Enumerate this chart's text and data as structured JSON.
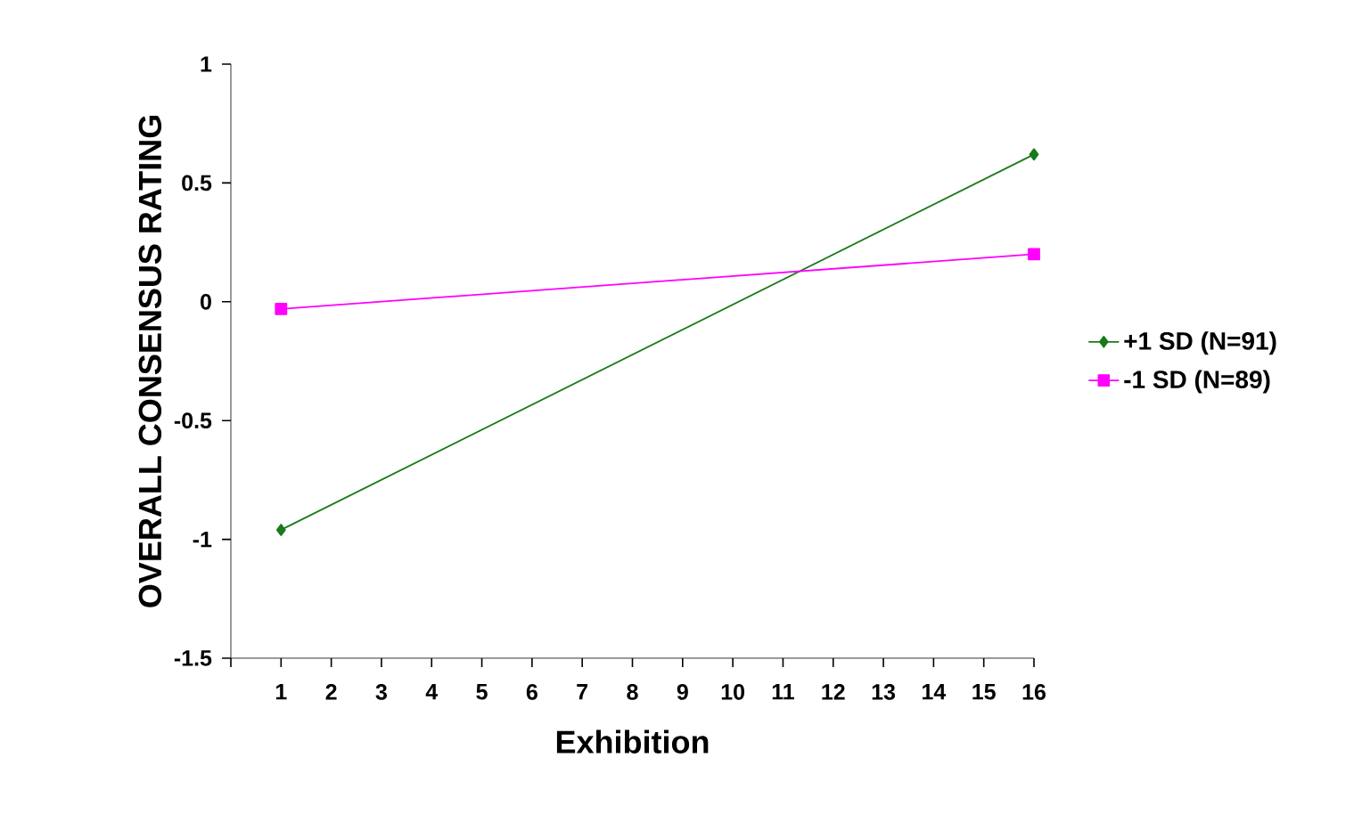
{
  "chart_data": {
    "type": "line",
    "xlabel": "Exhibition",
    "ylabel": "OVERALL CONSENSUS RATING",
    "x": [
      1,
      16
    ],
    "series": [
      {
        "name": "+1 SD (N=91)",
        "color": "#1a7a1a",
        "marker": "diamond",
        "values": [
          -0.96,
          0.62
        ]
      },
      {
        "name": "-1 SD (N=89)",
        "color": "#ff00ff",
        "marker": "square",
        "values": [
          -0.03,
          0.2
        ]
      }
    ],
    "xlim": [
      0,
      16
    ],
    "xticks": [
      {
        "value": 0,
        "label": null
      },
      1,
      2,
      3,
      4,
      5,
      6,
      7,
      8,
      9,
      10,
      11,
      12,
      13,
      14,
      15,
      16
    ],
    "ylim": [
      -1.5,
      1
    ],
    "yticks": [
      -1.5,
      -1,
      -0.5,
      0,
      0.5,
      1
    ],
    "legend": "right"
  }
}
